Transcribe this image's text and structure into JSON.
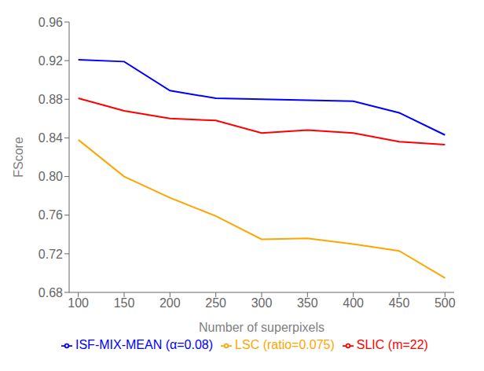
{
  "chart_data": {
    "type": "line",
    "x": [
      100,
      150,
      200,
      250,
      300,
      350,
      400,
      450,
      500
    ],
    "series": [
      {
        "name": "SLIC (m=22)",
        "color": "#FF0000",
        "values": [
          0.881,
          0.868,
          0.86,
          0.858,
          0.845,
          0.848,
          0.845,
          0.836,
          0.833
        ]
      },
      {
        "name": "ISF-MIX-MEAN (α=0.08)",
        "color": "#0000FF",
        "values": [
          0.921,
          0.919,
          0.889,
          0.881,
          0.88,
          0.879,
          0.878,
          0.866,
          0.843
        ]
      },
      {
        "name": "LSC (ratio=0.075)",
        "color": "#FFA500",
        "values": [
          0.838,
          0.8,
          0.778,
          0.759,
          0.735,
          0.736,
          0.73,
          0.723,
          0.695
        ]
      }
    ],
    "xlabel": "Number of superpixels",
    "ylabel": "FScore",
    "xlim": [
      90,
      510
    ],
    "ylim": [
      0.68,
      0.96
    ],
    "xticks": [
      100,
      150,
      200,
      250,
      300,
      350,
      400,
      450,
      500
    ],
    "yticks": [
      0.68,
      0.72,
      0.76,
      {
        "value": 0.8,
        "label": "0.80"
      },
      0.84,
      0.88,
      0.92,
      0.96
    ],
    "legend": "lower left",
    "grid": false
  }
}
